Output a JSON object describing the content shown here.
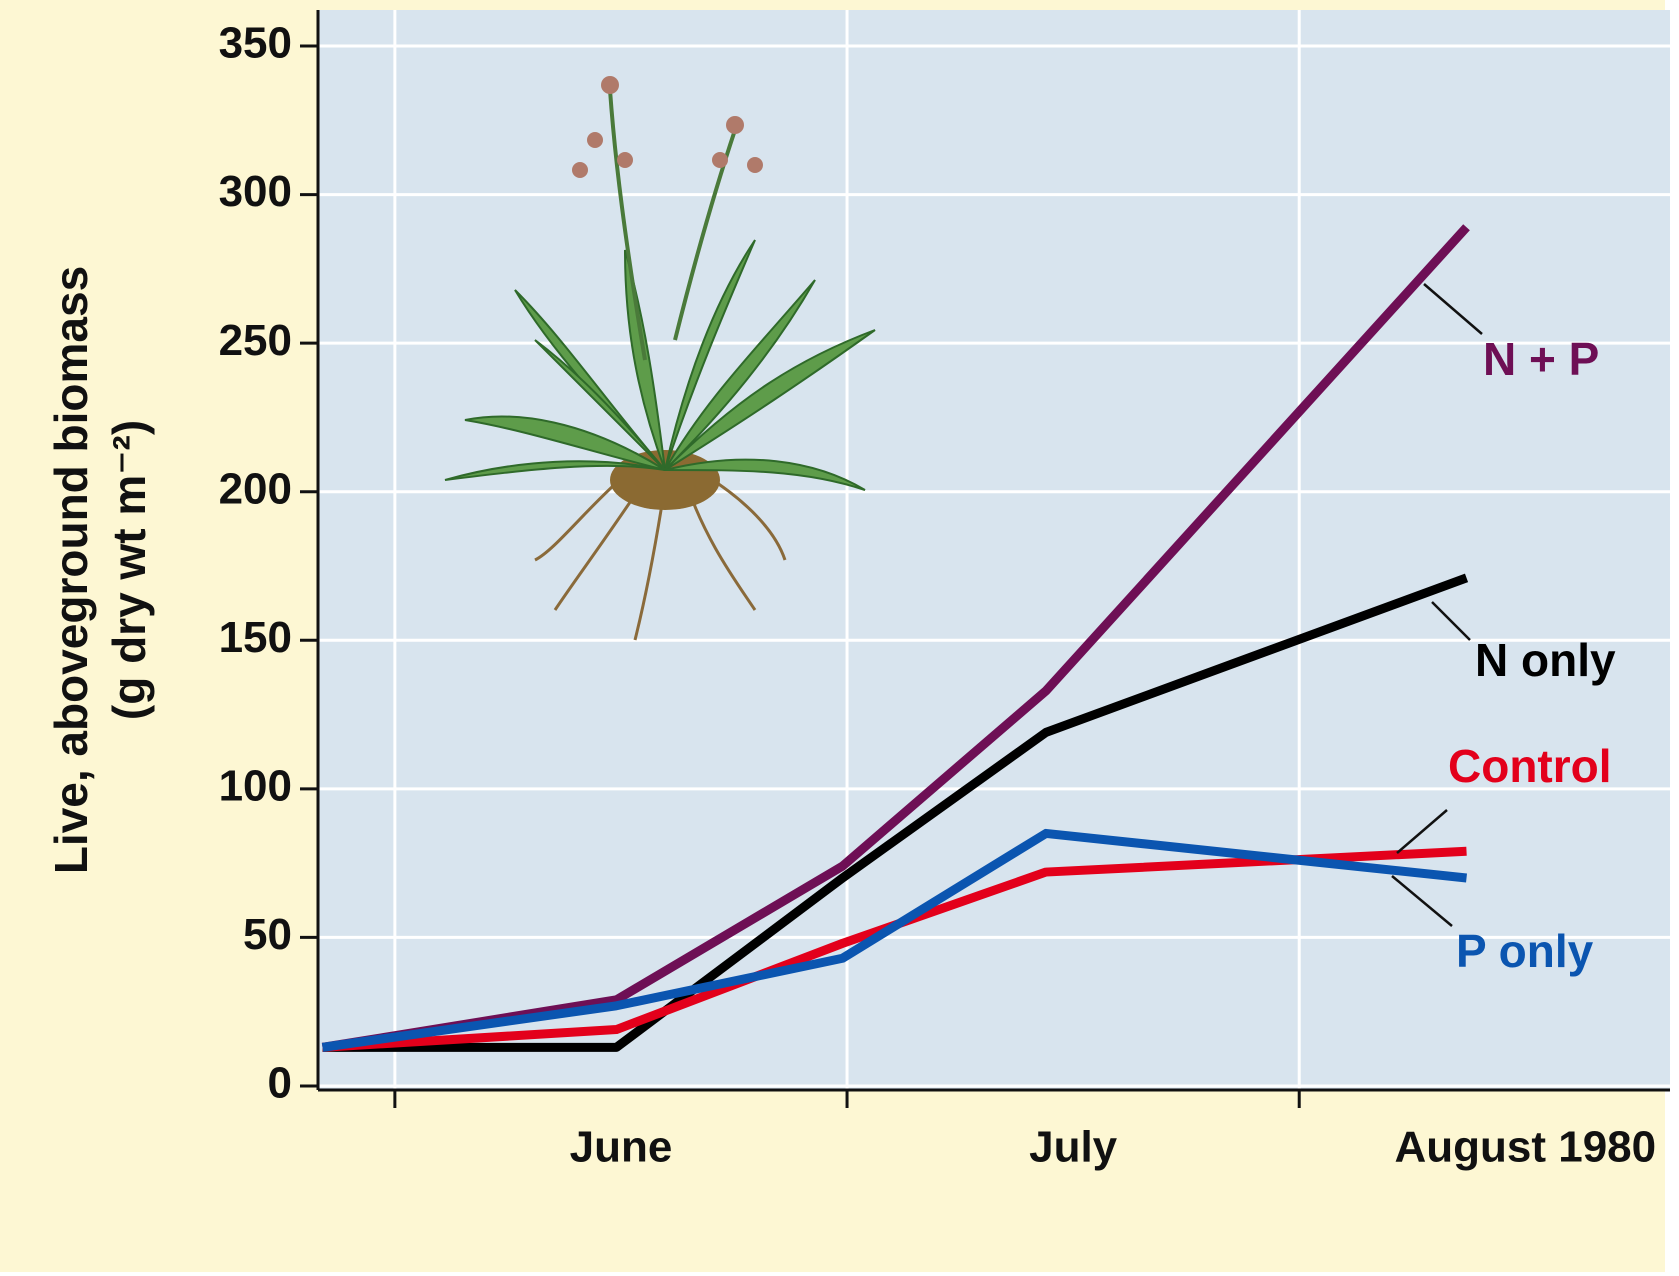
{
  "chart_data": {
    "type": "line",
    "ylabel": [
      "Live, aboveground biomass",
      "(g dry wt m⁻²)"
    ],
    "categories": [
      "June",
      "July",
      "August 1980"
    ],
    "x": [
      -0.16,
      0.49,
      0.99,
      1.44,
      2.37
    ],
    "xlim": [
      -0.17,
      2.82
    ],
    "xticks": [
      0,
      1,
      2
    ],
    "ylim": [
      0,
      350
    ],
    "yticks": [
      0,
      50,
      100,
      150,
      200,
      250,
      300,
      350
    ],
    "grid": true,
    "series": [
      {
        "name": "N + P",
        "color": "#6e0f55",
        "values": [
          13,
          29,
          74,
          133,
          289
        ]
      },
      {
        "name": "N only",
        "color": "#000000",
        "values": [
          13,
          13,
          70,
          119,
          171
        ]
      },
      {
        "name": "Control",
        "color": "#e3001b",
        "values": [
          13,
          19,
          48,
          72,
          79
        ]
      },
      {
        "name": "P only",
        "color": "#0b55b0",
        "values": [
          13,
          27,
          43,
          85,
          70
        ]
      }
    ]
  }
}
